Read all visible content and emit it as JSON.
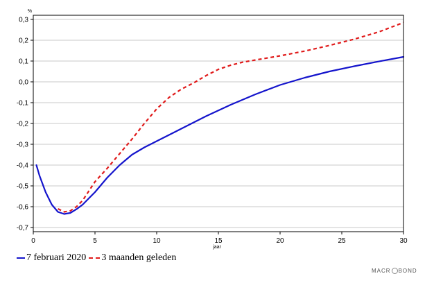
{
  "chart_data": {
    "type": "line",
    "ylabel": "%",
    "xlabel": "jaar",
    "xlim": [
      0,
      30
    ],
    "ylim": [
      -0.72,
      0.32
    ],
    "xticks": [
      "0",
      "5",
      "10",
      "15",
      "20",
      "25",
      "30"
    ],
    "xtick_values": [
      0,
      5,
      10,
      15,
      20,
      25,
      30
    ],
    "yticks": [
      "0,3",
      "0,2",
      "0,1",
      "0,0",
      "-0,1",
      "-0,2",
      "-0,3",
      "-0,4",
      "-0,5",
      "-0,6",
      "-0,7"
    ],
    "ytick_values": [
      0.3,
      0.2,
      0.1,
      0.0,
      -0.1,
      -0.2,
      -0.3,
      -0.4,
      -0.5,
      -0.6,
      -0.7
    ],
    "grid": true,
    "legend_position": "bottom-left",
    "series": [
      {
        "name": "7 februari 2020",
        "color": "#1414cc",
        "style": "solid",
        "x": [
          0.25,
          0.5,
          1,
          1.5,
          2,
          2.5,
          3,
          3.5,
          4,
          5,
          6,
          7,
          8,
          9,
          10,
          12,
          14,
          16,
          18,
          20,
          22,
          24,
          26,
          28,
          30
        ],
        "y": [
          -0.4,
          -0.45,
          -0.53,
          -0.59,
          -0.625,
          -0.635,
          -0.63,
          -0.612,
          -0.59,
          -0.53,
          -0.46,
          -0.4,
          -0.35,
          -0.315,
          -0.285,
          -0.225,
          -0.165,
          -0.11,
          -0.06,
          -0.015,
          0.02,
          0.05,
          0.075,
          0.098,
          0.12
        ]
      },
      {
        "name": "3 maanden geleden",
        "color": "#e01a1a",
        "style": "dashed",
        "x": [
          2,
          2.5,
          3,
          3.5,
          4,
          5,
          6,
          7,
          8,
          9,
          10,
          11,
          12,
          13,
          14,
          15,
          16,
          17,
          18,
          20,
          22,
          24,
          26,
          28,
          30
        ],
        "y": [
          -0.61,
          -0.625,
          -0.62,
          -0.6,
          -0.57,
          -0.48,
          -0.415,
          -0.345,
          -0.275,
          -0.2,
          -0.13,
          -0.075,
          -0.035,
          -0.005,
          0.03,
          0.06,
          0.08,
          0.095,
          0.105,
          0.125,
          0.148,
          0.175,
          0.205,
          0.24,
          0.285
        ]
      }
    ]
  },
  "legend": {
    "item1_label": "7 februari 2020",
    "item2_label": "3 maanden geleden"
  },
  "brand": {
    "left": "MACR",
    "right": "BOND"
  }
}
